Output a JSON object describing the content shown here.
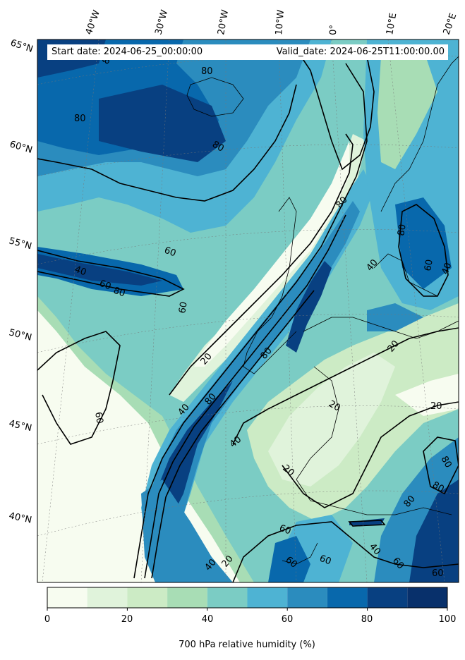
{
  "header": {
    "start_date": "Start date: 2024-06-25_00:00:00",
    "valid_date": "Valid_date: 2024-06-25T11:00:00.00"
  },
  "map": {
    "longitude_labels": [
      "40°W",
      "30°W",
      "20°W",
      "10°W",
      "0°",
      "10°E",
      "20°E"
    ],
    "latitude_labels": [
      "65°N",
      "60°N",
      "55°N",
      "50°N",
      "45°N",
      "40°N"
    ],
    "contour_labels": [
      "80",
      "80",
      "80",
      "80",
      "60",
      "60",
      "40",
      "60",
      "80",
      "20",
      "80",
      "40",
      "80",
      "60",
      "40",
      "80",
      "40",
      "20",
      "60",
      "40",
      "20",
      "20",
      "20",
      "80",
      "80",
      "80",
      "60",
      "40",
      "60",
      "80",
      "60",
      "40",
      "20",
      "60",
      "60"
    ]
  },
  "colorbar": {
    "label": "700 hPa relative humidity (%)",
    "ticks": [
      "0",
      "20",
      "40",
      "60",
      "80",
      "100"
    ],
    "levels": [
      0,
      10,
      20,
      30,
      40,
      50,
      60,
      70,
      80,
      90,
      100
    ],
    "colors": [
      "#f7fcf0",
      "#e0f3db",
      "#ccebc5",
      "#a8ddb5",
      "#7bccc4",
      "#4eb3d3",
      "#2b8cbe",
      "#0868ac",
      "#084081",
      "#08306b"
    ]
  }
}
